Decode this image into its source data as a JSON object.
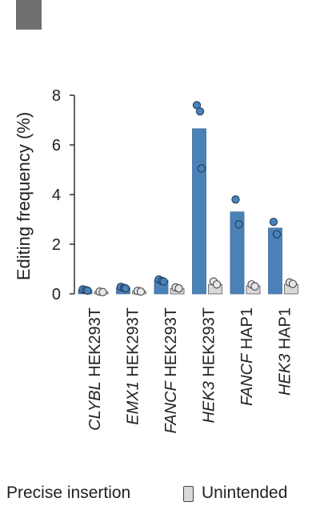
{
  "chart_data": {
    "type": "bar",
    "ylabel": "Editing frequency (%)",
    "ylim": [
      0,
      8
    ],
    "yticks": [
      "0",
      "2",
      "4",
      "6",
      "8"
    ],
    "groups": [
      {
        "label_italic": "CLYBL",
        "label_rest": " HEK293T"
      },
      {
        "label_italic": "EMX1",
        "label_rest": " HEK293T"
      },
      {
        "label_italic": "FANCF",
        "label_rest": " HEK293T"
      },
      {
        "label_italic": "HEK3",
        "label_rest": " HEK293T"
      },
      {
        "label_italic": "FANCF",
        "label_rest": " HAP1"
      },
      {
        "label_italic": "HEK3",
        "label_rest": " HAP1"
      }
    ],
    "series": [
      {
        "name": "Precise insertion",
        "color": "#4a82b8",
        "values": [
          0.15,
          0.25,
          0.55,
          6.65,
          3.3,
          2.65
        ],
        "replicates": [
          [
            0.18,
            0.15,
            0.13
          ],
          [
            0.28,
            0.24,
            0.22
          ],
          [
            0.58,
            0.52,
            0.5
          ],
          [
            7.6,
            7.35,
            5.05
          ],
          [
            3.8,
            2.8
          ],
          [
            2.9,
            2.4
          ]
        ]
      },
      {
        "name": "Unintended",
        "color": "#d9d9d9",
        "values": [
          0.08,
          0.1,
          0.22,
          0.38,
          0.32,
          0.38
        ],
        "replicates": [
          [
            0.09,
            0.07
          ],
          [
            0.12,
            0.09
          ],
          [
            0.26,
            0.22
          ],
          [
            0.5,
            0.38
          ],
          [
            0.38,
            0.3
          ],
          [
            0.46,
            0.4
          ]
        ]
      }
    ],
    "legend": {
      "position": "bottom"
    }
  }
}
